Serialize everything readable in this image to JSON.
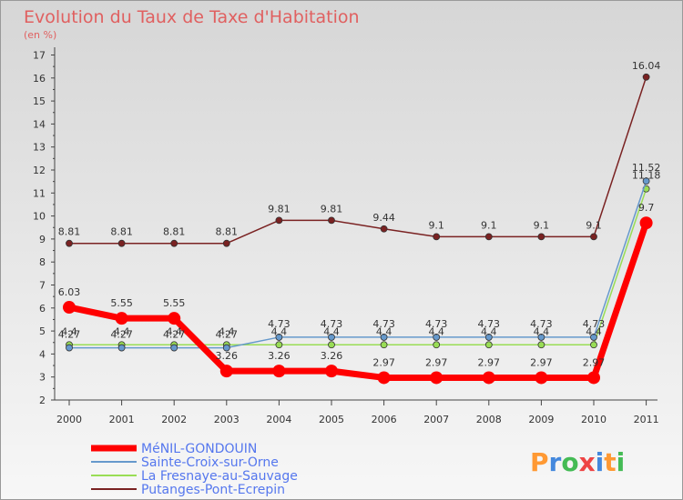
{
  "chart_data": {
    "type": "line",
    "title": "Evolution du Taux de Taxe d'Habitation",
    "subtitle": "(en %)",
    "x": [
      "2000",
      "2001",
      "2002",
      "2003",
      "2004",
      "2005",
      "2006",
      "2007",
      "2008",
      "2009",
      "2010",
      "2011"
    ],
    "ylim": [
      2,
      17
    ],
    "yticks": [
      "2",
      "3",
      "4",
      "5",
      "6",
      "7",
      "8",
      "9",
      "10",
      "11",
      "12",
      "13",
      "14",
      "15",
      "16",
      "17"
    ],
    "grid": false,
    "legend_position": "bottom-left",
    "series": [
      {
        "name": "MéNIL-GONDOUIN",
        "color": "#ff0000",
        "values": [
          6.03,
          5.55,
          5.55,
          3.26,
          3.26,
          3.26,
          2.97,
          2.97,
          2.97,
          2.97,
          2.97,
          9.7
        ],
        "labels": [
          "6.03",
          "5.55",
          "5.55",
          "3.26",
          "3.26",
          "3.26",
          "2.97",
          "2.97",
          "2.97",
          "2.97",
          "2.97",
          "9.7"
        ]
      },
      {
        "name": "Sainte-Croix-sur-Orne",
        "color": "#6699cc",
        "values": [
          4.27,
          4.27,
          4.27,
          4.27,
          4.73,
          4.73,
          4.73,
          4.73,
          4.73,
          4.73,
          4.73,
          11.52
        ],
        "labels": [
          "4.27",
          "4.27",
          "4.27",
          "4.27",
          "4.73",
          "4.73",
          "4.73",
          "4.73",
          "4.73",
          "4.73",
          "4.73",
          "11.52"
        ]
      },
      {
        "name": "La Fresnaye-au-Sauvage",
        "color": "#99dd55",
        "values": [
          4.4,
          4.4,
          4.4,
          4.4,
          4.4,
          4.4,
          4.4,
          4.4,
          4.4,
          4.4,
          4.4,
          11.18
        ],
        "labels": [
          "4.4",
          "4.4",
          "4.4",
          "4.4",
          "4.4",
          "4.4",
          "4.4",
          "4.4",
          "4.4",
          "4.4",
          "4.4",
          "11.18"
        ]
      },
      {
        "name": "Putanges-Pont-Ecrepin",
        "color": "#7a2222",
        "values": [
          8.81,
          8.81,
          8.81,
          8.81,
          9.81,
          9.81,
          9.44,
          9.1,
          9.1,
          9.1,
          9.1,
          16.04
        ],
        "labels": [
          "8.81",
          "8.81",
          "8.81",
          "8.81",
          "9.81",
          "9.81",
          "9.44",
          "9.1",
          "9.1",
          "9.1",
          "9.1",
          "16.04"
        ]
      }
    ]
  },
  "watermark": "Proxiti"
}
